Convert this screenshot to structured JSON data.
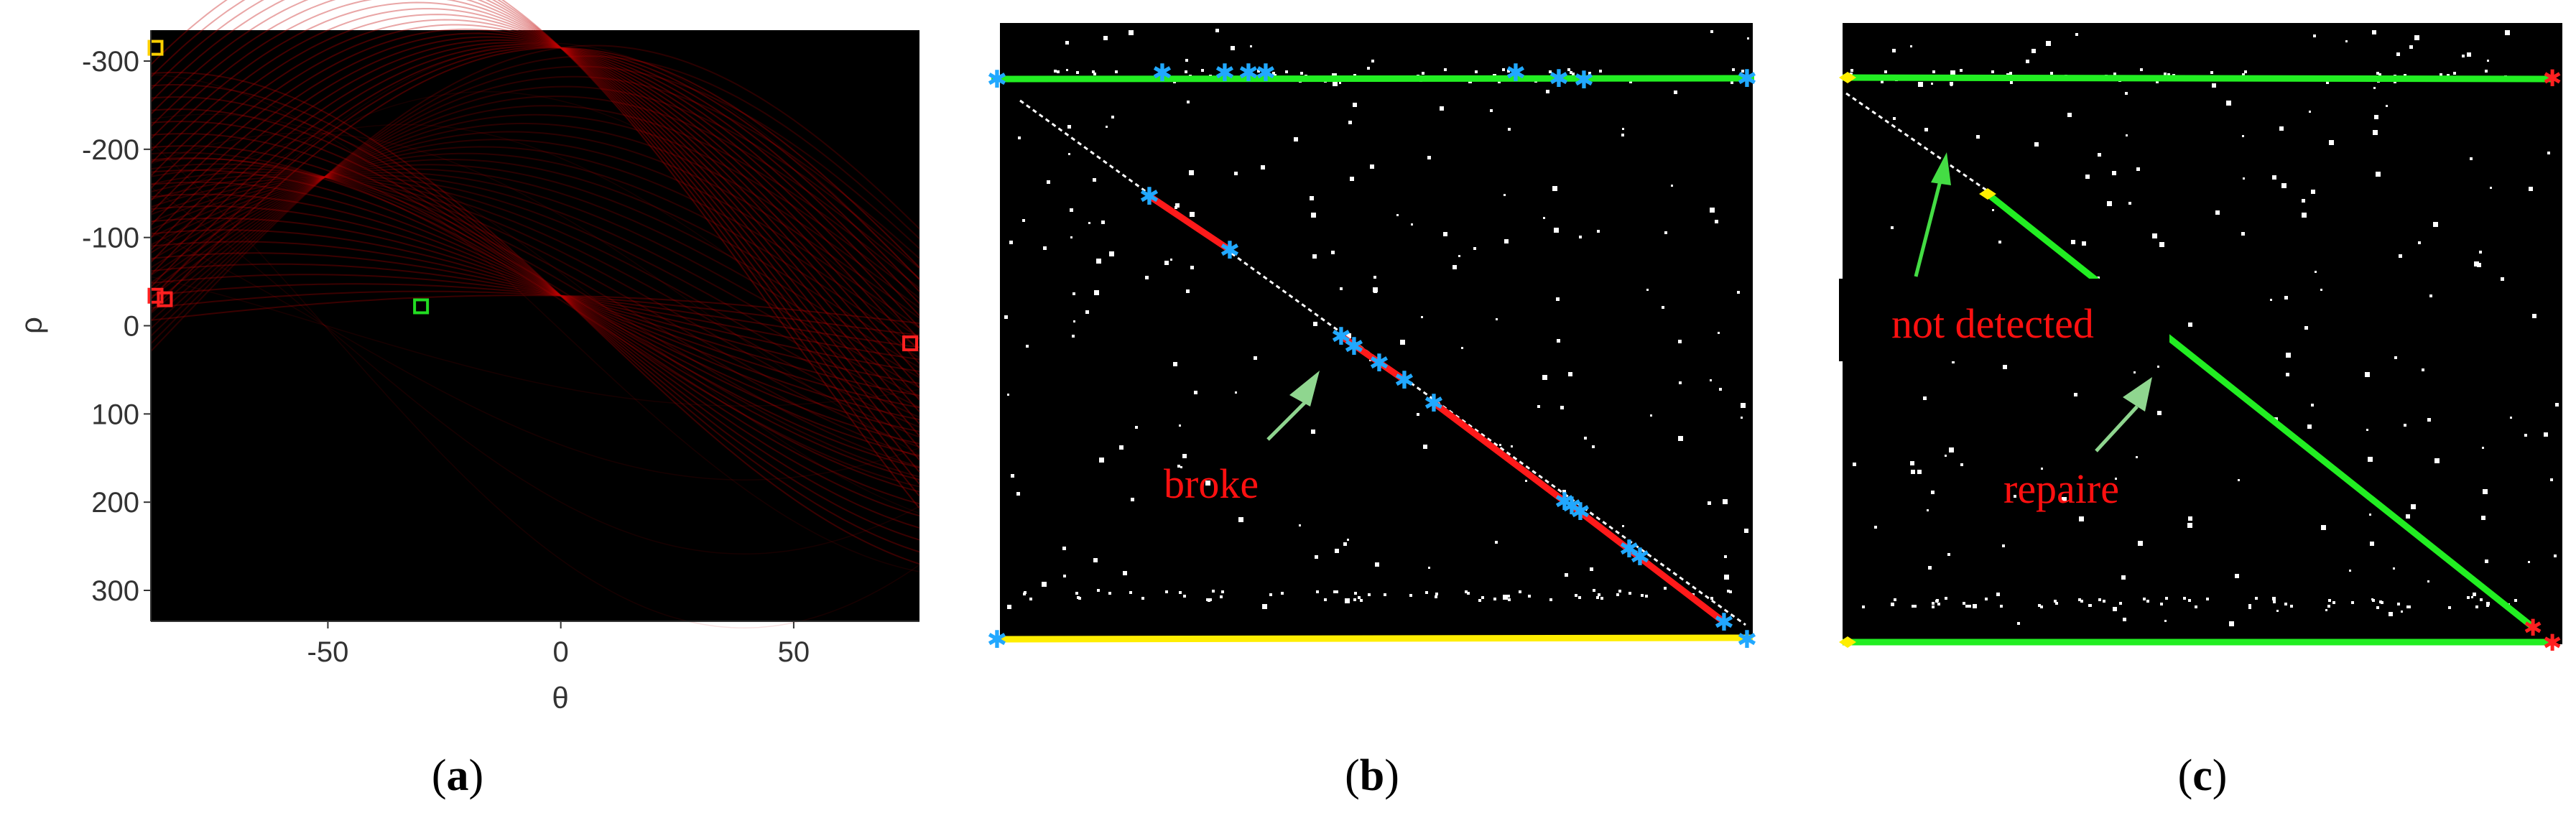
{
  "panel_a": {
    "caption_open": "(",
    "caption_letter": "a",
    "caption_close": ")",
    "xlabel": "θ",
    "ylabel": "ρ",
    "xlim": [
      -88,
      77
    ],
    "ylim": [
      -335,
      335
    ],
    "yaxis_inverted": true,
    "xticks": [
      -50,
      0,
      50
    ],
    "yticks": [
      -300,
      -200,
      -100,
      0,
      100,
      200,
      300
    ],
    "background": "#000000",
    "curve_color": "#c00000",
    "peaks": [
      {
        "theta": -87,
        "rho": -315,
        "color": "#ffd000"
      },
      {
        "theta": -87,
        "rho": -34,
        "color": "#ff2020"
      },
      {
        "theta": -85,
        "rho": -30,
        "color": "#ff2020"
      },
      {
        "theta": -30,
        "rho": -22,
        "color": "#22dd22"
      },
      {
        "theta": 75,
        "rho": 20,
        "color": "#ff2020"
      }
    ]
  },
  "panel_b": {
    "caption_open": "(",
    "caption_letter": "b",
    "caption_close": ")",
    "annotation": "broke",
    "background": "#000000",
    "colors": {
      "top_line": "#22ee22",
      "bottom_line": "#ffee00",
      "diagonal": "#ff1a1a",
      "endpoint": "#21a8ff",
      "arrow": "#8fd68f"
    }
  },
  "panel_c": {
    "caption_open": "(",
    "caption_letter": "c",
    "caption_close": ")",
    "annotation_1": "not detected",
    "annotation_2": "repaire",
    "background": "#000000",
    "colors": {
      "line": "#22ee22",
      "start_marker": "#ffee00",
      "end_marker": "#ff2020",
      "arrow": "#44dd44"
    }
  }
}
